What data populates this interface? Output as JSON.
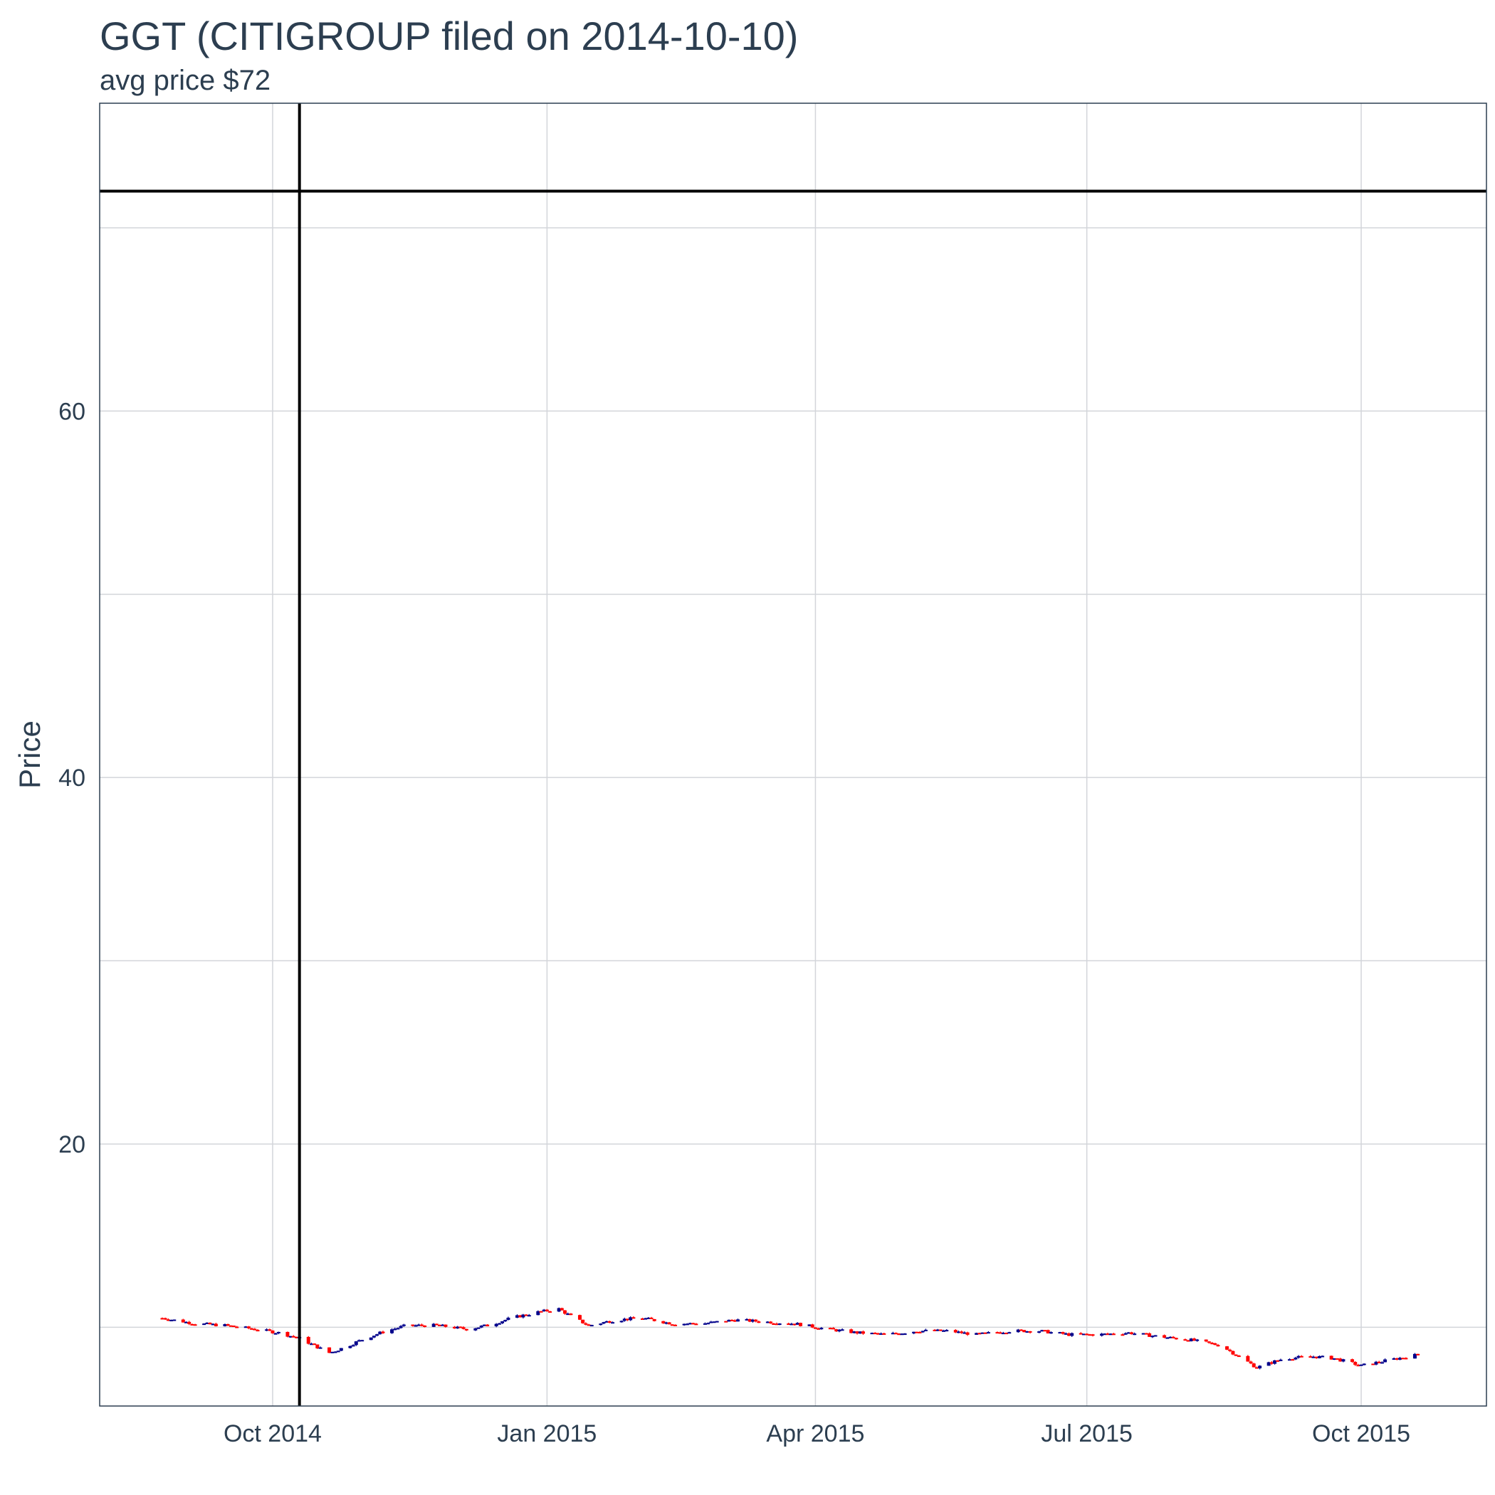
{
  "chart_data": {
    "type": "candlestick",
    "title": "GGT (CITIGROUP filed on 2014-10-10)",
    "subtitle": "avg price $72",
    "ylabel": "Price",
    "xlabel": "",
    "xlim": [
      "2014-08-04",
      "2015-11-12"
    ],
    "ylim": [
      5.7,
      76.8
    ],
    "y_ticks": [
      20,
      40,
      60
    ],
    "x_ticks": [
      {
        "date": "2014-10-01",
        "label": "Oct 2014"
      },
      {
        "date": "2015-01-01",
        "label": "Jan 2015"
      },
      {
        "date": "2015-04-01",
        "label": "Apr 2015"
      },
      {
        "date": "2015-07-01",
        "label": "Jul 2015"
      },
      {
        "date": "2015-10-01",
        "label": "Oct 2015"
      }
    ],
    "grid": true,
    "reference_lines": {
      "vertical_date": "2014-10-10",
      "horizontal_value": 72
    },
    "colors": {
      "up": "#00008b",
      "down": "#ff0000",
      "reference": "#000000",
      "grid": "#d3d5da",
      "frame": "#2c3e50"
    },
    "price_path": [
      [
        "2014-08-25",
        10.5
      ],
      [
        "2014-09-05",
        10.2
      ],
      [
        "2014-09-15",
        10.1
      ],
      [
        "2014-09-25",
        9.9
      ],
      [
        "2014-10-03",
        9.7
      ],
      [
        "2014-10-10",
        9.4
      ],
      [
        "2014-10-15",
        9.0
      ],
      [
        "2014-10-20",
        8.6
      ],
      [
        "2014-10-25",
        8.9
      ],
      [
        "2014-11-01",
        9.4
      ],
      [
        "2014-11-08",
        9.8
      ],
      [
        "2014-11-15",
        10.1
      ],
      [
        "2014-11-25",
        10.1
      ],
      [
        "2014-12-05",
        9.9
      ],
      [
        "2014-12-12",
        10.1
      ],
      [
        "2014-12-20",
        10.5
      ],
      [
        "2014-12-28",
        10.8
      ],
      [
        "2015-01-05",
        11.0
      ],
      [
        "2015-01-10",
        10.5
      ],
      [
        "2015-01-15",
        10.1
      ],
      [
        "2015-01-24",
        10.4
      ],
      [
        "2015-02-02",
        10.5
      ],
      [
        "2015-02-12",
        10.2
      ],
      [
        "2015-02-22",
        10.2
      ],
      [
        "2015-03-05",
        10.4
      ],
      [
        "2015-03-15",
        10.3
      ],
      [
        "2015-03-25",
        10.2
      ],
      [
        "2015-04-05",
        9.9
      ],
      [
        "2015-04-15",
        9.7
      ],
      [
        "2015-04-25",
        9.6
      ],
      [
        "2015-05-05",
        9.8
      ],
      [
        "2015-05-15",
        9.8
      ],
      [
        "2015-05-25",
        9.6
      ],
      [
        "2015-06-05",
        9.8
      ],
      [
        "2015-06-15",
        9.8
      ],
      [
        "2015-06-25",
        9.6
      ],
      [
        "2015-07-05",
        9.6
      ],
      [
        "2015-07-15",
        9.7
      ],
      [
        "2015-07-25",
        9.5
      ],
      [
        "2015-08-05",
        9.3
      ],
      [
        "2015-08-15",
        9.0
      ],
      [
        "2015-08-22",
        8.3
      ],
      [
        "2015-08-27",
        7.8
      ],
      [
        "2015-09-05",
        8.3
      ],
      [
        "2015-09-15",
        8.4
      ],
      [
        "2015-09-22",
        8.3
      ],
      [
        "2015-10-01",
        7.9
      ],
      [
        "2015-10-10",
        8.2
      ],
      [
        "2015-10-20",
        8.5
      ]
    ]
  }
}
